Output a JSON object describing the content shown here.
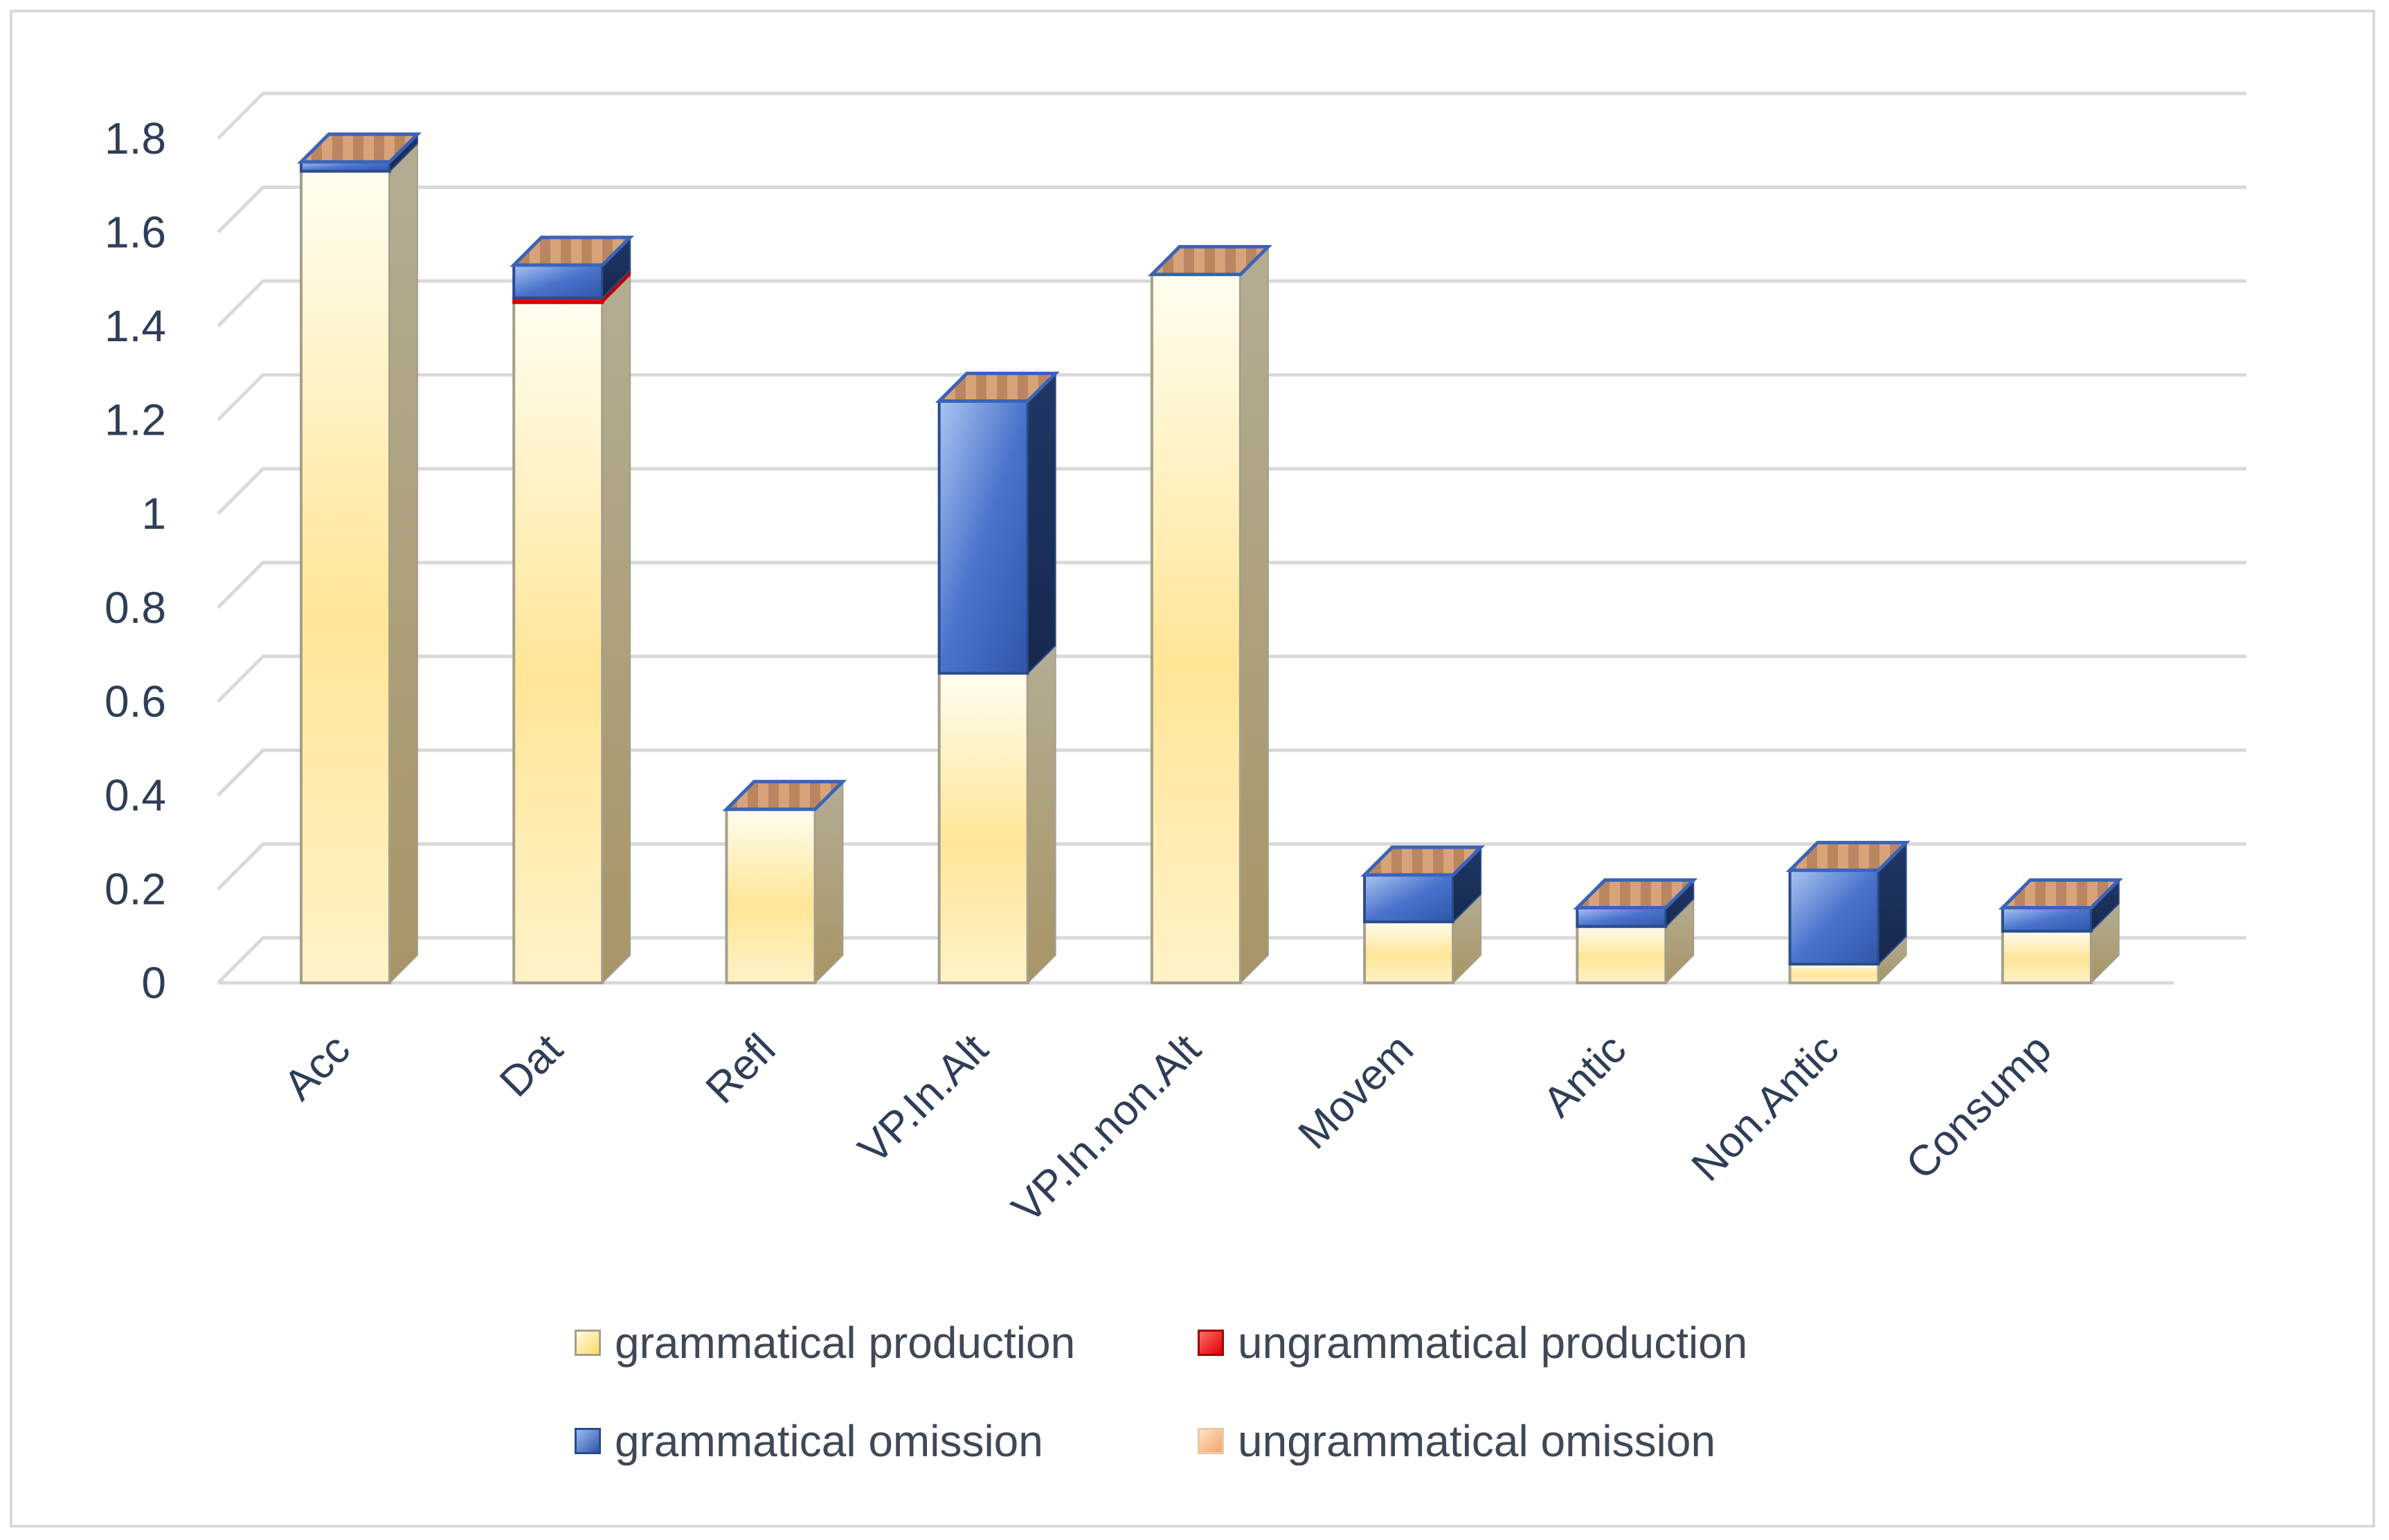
{
  "colors": {
    "grammatical_production": "#ffe38a",
    "ungrammatical_production": "#ff0000",
    "grammatical_omission": "#3a63c0",
    "ungrammatical_omission": "#f2a76e",
    "gridline": "#d9d9d9",
    "axis_text": "#2f3e57"
  },
  "chart_data": {
    "type": "bar",
    "stacked": true,
    "style": "3d-column",
    "title": "",
    "xlabel": "",
    "ylabel": "",
    "ylim": [
      0,
      1.8
    ],
    "yticks": [
      "0",
      "0.2",
      "0.4",
      "0.6",
      "0.8",
      "1",
      "1.2",
      "1.4",
      "1.6",
      "1.8"
    ],
    "categories": [
      "Acc",
      "Dat",
      "Refl",
      "VP.In.Alt",
      "VP.In.non.Alt",
      "Movem",
      "Antic",
      "Non.Antic",
      "Consump"
    ],
    "series": [
      {
        "name": "grammatical production",
        "values": [
          1.73,
          1.45,
          0.37,
          0.66,
          1.51,
          0.13,
          0.12,
          0.04,
          0.11
        ]
      },
      {
        "name": "ungrammatical production",
        "values": [
          0,
          0.01,
          0,
          0,
          0,
          0,
          0,
          0,
          0
        ]
      },
      {
        "name": "grammatical omission",
        "values": [
          0.02,
          0.07,
          0,
          0.58,
          0,
          0.1,
          0.04,
          0.2,
          0.05
        ]
      },
      {
        "name": "ungrammatical omission",
        "values": [
          0,
          0,
          0,
          0,
          0,
          0,
          0,
          0,
          0
        ]
      }
    ],
    "legend_position": "bottom",
    "gridlines": true
  },
  "legend": {
    "items": [
      {
        "label": "grammatical production"
      },
      {
        "label": "ungrammatical production"
      },
      {
        "label": "grammatical omission"
      },
      {
        "label": "ungrammatical omission"
      }
    ]
  }
}
